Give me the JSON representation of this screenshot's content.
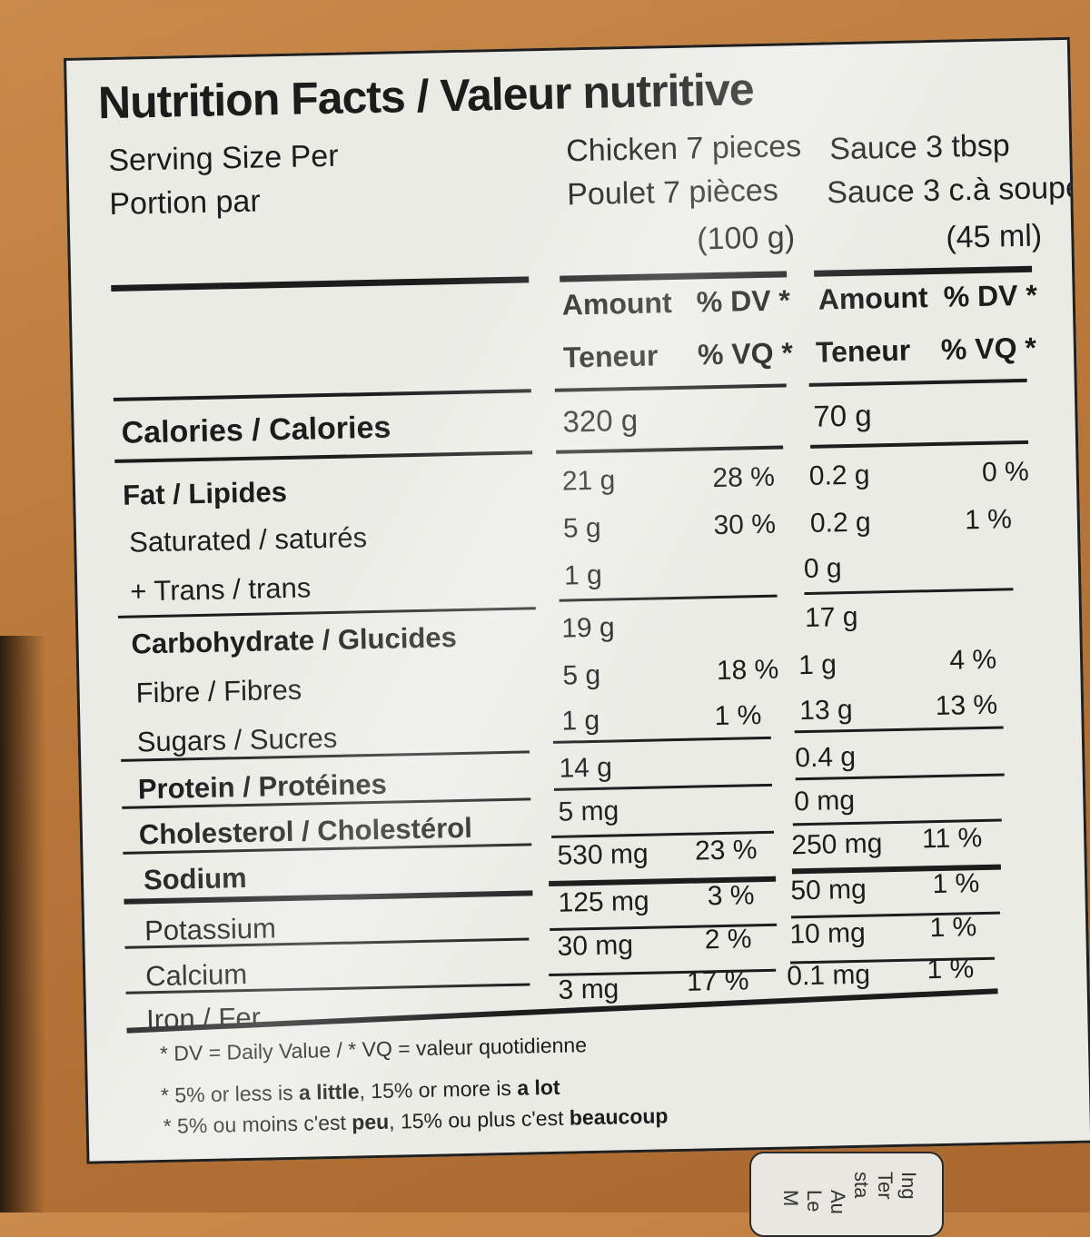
{
  "title": "Nutrition Facts / Valeur nutritive",
  "serving": {
    "label_en": "Serving Size Per",
    "label_fr": "Portion par",
    "chicken_en": "Chicken 7 pieces",
    "chicken_fr": "Poulet  7 pièces",
    "chicken_weight": "(100 g)",
    "sauce_en": "Sauce 3 tbsp",
    "sauce_fr": "Sauce  3 c.à soupe",
    "sauce_volume": "(45 ml)"
  },
  "headers": {
    "amount": "Amount",
    "dv": "% DV *",
    "teneur": "Teneur",
    "vq": "% VQ *"
  },
  "rows": [
    {
      "name": "Calories / Calories",
      "chicken_amount": "320 g",
      "chicken_dv": "",
      "sauce_amount": "70 g",
      "sauce_dv": ""
    },
    {
      "name": "Fat / Lipides",
      "chicken_amount": "21 g",
      "chicken_dv": "28 %",
      "sauce_amount": "0.2 g",
      "sauce_dv": "0 %"
    },
    {
      "name": "Saturated / saturés",
      "chicken_amount": "5 g",
      "chicken_dv": "30 %",
      "sauce_amount": "0.2 g",
      "sauce_dv": "1 %"
    },
    {
      "name": "+ Trans / trans",
      "chicken_amount": "1 g",
      "chicken_dv": "",
      "sauce_amount": "0 g",
      "sauce_dv": ""
    },
    {
      "name": "Carbohydrate / Glucides",
      "chicken_amount": "19 g",
      "chicken_dv": "",
      "sauce_amount": "17 g",
      "sauce_dv": ""
    },
    {
      "name": "Fibre / Fibres",
      "chicken_amount": "5 g",
      "chicken_dv": "18 %",
      "sauce_amount": "1 g",
      "sauce_dv": "4 %"
    },
    {
      "name": "Sugars / Sucres",
      "chicken_amount": "1 g",
      "chicken_dv": "1 %",
      "sauce_amount": "13 g",
      "sauce_dv": "13 %"
    },
    {
      "name": "Protein / Protéines",
      "chicken_amount": "14 g",
      "chicken_dv": "",
      "sauce_amount": "0.4 g",
      "sauce_dv": ""
    },
    {
      "name": "Cholesterol / Cholestérol",
      "chicken_amount": "5 mg",
      "chicken_dv": "",
      "sauce_amount": "0 mg",
      "sauce_dv": ""
    },
    {
      "name": "Sodium",
      "chicken_amount": "530 mg",
      "chicken_dv": "23 %",
      "sauce_amount": "250 mg",
      "sauce_dv": "11 %"
    },
    {
      "name": "Potassium",
      "chicken_amount": "125 mg",
      "chicken_dv": "3 %",
      "sauce_amount": "50 mg",
      "sauce_dv": "1 %"
    },
    {
      "name": "Calcium",
      "chicken_amount": "30 mg",
      "chicken_dv": "2 %",
      "sauce_amount": "10 mg",
      "sauce_dv": "1 %"
    },
    {
      "name": "Iron / Fer",
      "chicken_amount": "3 mg",
      "chicken_dv": "17 %",
      "sauce_amount": "0.1 mg",
      "sauce_dv": "1 %"
    }
  ],
  "footnotes": {
    "dv": "* DV = Daily Value / * VQ = valeur quotidienne",
    "en_a": "* 5% or less is ",
    "en_b": "a little",
    "en_c": ", 15% or more is ",
    "en_d": "a lot",
    "fr_a": "* 5% ou moins c'est ",
    "fr_b": "peu",
    "fr_c": ", 15% ou plus c'est ",
    "fr_d": "beaucoup"
  },
  "side_text": [
    "Ing",
    "Ter",
    "sta",
    "Au",
    "Le",
    "M"
  ]
}
